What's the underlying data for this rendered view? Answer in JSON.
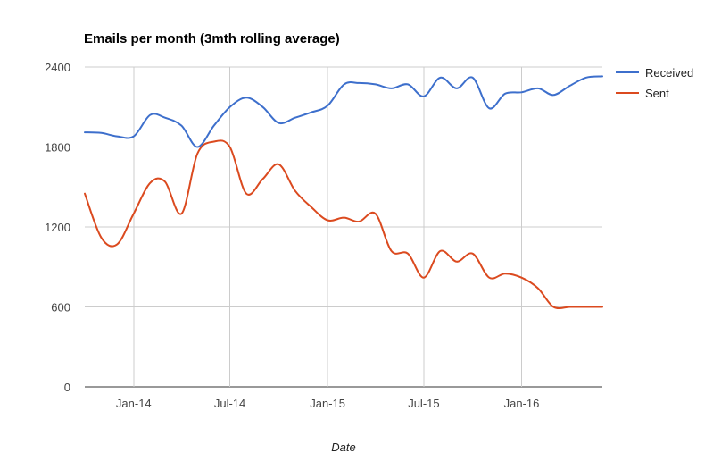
{
  "chart_data": {
    "type": "line",
    "title": "Emails per month (3mth rolling average)",
    "xlabel": "Date",
    "ylabel": "",
    "ylim": [
      0,
      2400
    ],
    "yticks": [
      0,
      600,
      1200,
      1800,
      2400
    ],
    "xlim": [
      "2013-10-01",
      "2016-06-01"
    ],
    "xticks": [
      {
        "date": "2014-01-01",
        "label": "Jan-14"
      },
      {
        "date": "2014-07-01",
        "label": "Jul-14"
      },
      {
        "date": "2015-01-01",
        "label": "Jan-15"
      },
      {
        "date": "2015-07-01",
        "label": "Jul-15"
      },
      {
        "date": "2016-01-01",
        "label": "Jan-16"
      }
    ],
    "grid": true,
    "legend_position": "right",
    "x": [
      "2013-10-01",
      "2013-11-01",
      "2013-12-01",
      "2014-01-01",
      "2014-02-01",
      "2014-03-01",
      "2014-04-01",
      "2014-05-01",
      "2014-06-01",
      "2014-07-01",
      "2014-08-01",
      "2014-09-01",
      "2014-10-01",
      "2014-11-01",
      "2014-12-01",
      "2015-01-01",
      "2015-02-01",
      "2015-03-01",
      "2015-04-01",
      "2015-05-01",
      "2015-06-01",
      "2015-07-01",
      "2015-08-01",
      "2015-09-01",
      "2015-10-01",
      "2015-11-01",
      "2015-12-01",
      "2016-01-01",
      "2016-02-01",
      "2016-03-01",
      "2016-04-01",
      "2016-05-01",
      "2016-06-01"
    ],
    "series": [
      {
        "name": "Received",
        "color": "#3d6fcc",
        "values": [
          1910,
          1905,
          1880,
          1880,
          2040,
          2020,
          1960,
          1800,
          1960,
          2100,
          2170,
          2100,
          1980,
          2020,
          2060,
          2110,
          2270,
          2280,
          2270,
          2240,
          2270,
          2180,
          2320,
          2240,
          2320,
          2090,
          2200,
          2210,
          2240,
          2190,
          2260,
          2320,
          2330
        ]
      },
      {
        "name": "Sent",
        "color": "#db4a1f",
        "values": [
          1450,
          1120,
          1070,
          1300,
          1530,
          1540,
          1300,
          1750,
          1840,
          1800,
          1450,
          1560,
          1670,
          1470,
          1350,
          1250,
          1270,
          1240,
          1300,
          1020,
          1000,
          820,
          1020,
          940,
          1000,
          820,
          850,
          820,
          740,
          600,
          600,
          600,
          600
        ]
      }
    ]
  }
}
